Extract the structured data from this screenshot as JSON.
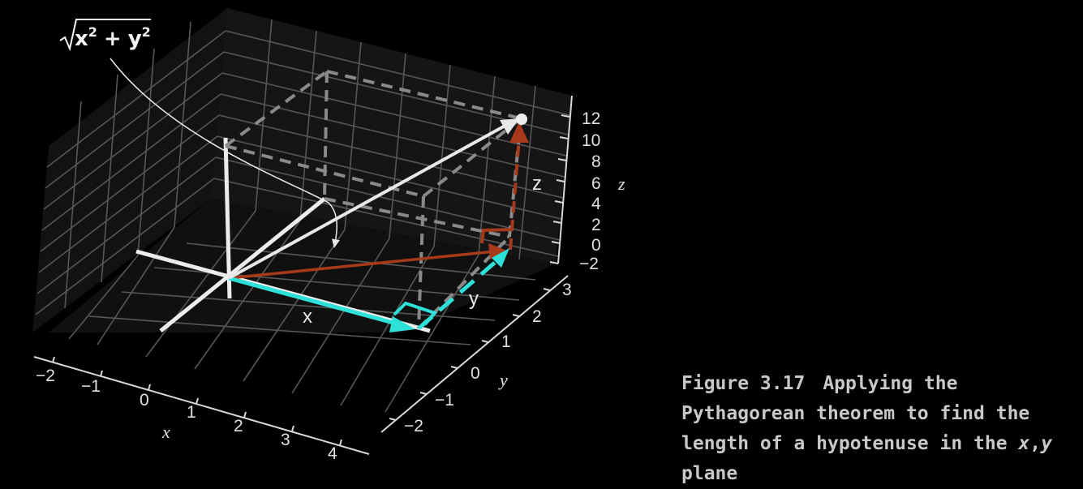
{
  "figure": {
    "annotation": "√x² + y²",
    "annotation_parts": {
      "x": "x",
      "y": "y",
      "sup": "2",
      "plus": "+"
    },
    "vector_labels": {
      "x": "x",
      "y": "y",
      "z": "z"
    },
    "axes": {
      "x": {
        "label": "x",
        "ticks": [
          "−2",
          "−1",
          "0",
          "1",
          "2",
          "3",
          "4"
        ]
      },
      "y": {
        "label": "y",
        "ticks": [
          "−2",
          "−1",
          "0",
          "1",
          "2",
          "3"
        ]
      },
      "z": {
        "label": "z",
        "ticks": [
          "−2",
          "0",
          "2",
          "4",
          "6",
          "8",
          "10",
          "12"
        ]
      }
    },
    "colors": {
      "x_component": "#2de0d8",
      "y_component": "#2de0d8",
      "hypotenuse": "#a83a1c",
      "z_component": "#a83a1c",
      "vector": "#e8e8e8",
      "dashed_box": "#8a8a8a",
      "grid": "#555555"
    }
  },
  "caption": {
    "number": "Figure 3.17",
    "text": "Applying the Pythagorean theorem to find the length of a hypotenuse in the ",
    "x": "x",
    "comma": ",",
    "y": "y",
    "tail": " plane"
  }
}
